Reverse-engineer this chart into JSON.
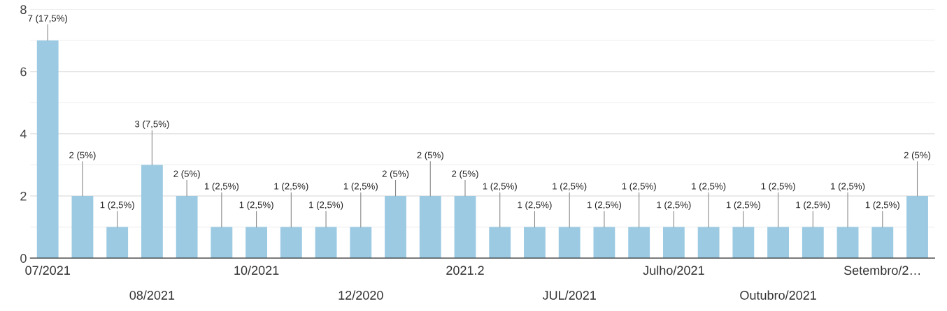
{
  "chart_data": {
    "type": "bar",
    "categories": [
      "07/2021",
      null,
      null,
      "08/2021",
      null,
      null,
      "10/2021",
      null,
      null,
      "12/2020",
      null,
      null,
      "2021.2",
      null,
      null,
      "JUL/2021",
      null,
      null,
      "Julho/2021",
      null,
      null,
      "Outubro/2021",
      null,
      null,
      "Setembro/2…",
      null
    ],
    "values": [
      7,
      2,
      1,
      3,
      2,
      1,
      1,
      1,
      1,
      1,
      2,
      2,
      2,
      1,
      1,
      1,
      1,
      1,
      1,
      1,
      1,
      1,
      1,
      1,
      1,
      2
    ],
    "value_labels": [
      "7 (17,5%)",
      "2 (5%)",
      "1 (2,5%)",
      "3 (7,5%)",
      "2 (5%)",
      "1 (2,5%)",
      "1 (2,5%)",
      "1 (2,5%)",
      "1 (2,5%)",
      "1 (2,5%)",
      "2 (5%)",
      "2 (5%)",
      "2 (5%)",
      "1 (2,5%)",
      "1 (2,5%)",
      "1 (2,5%)",
      "1 (2,5%)",
      "1 (2,5%)",
      "1 (2,5%)",
      "1 (2,5%)",
      "1 (2,5%)",
      "1 (2,5%)",
      "1 (2,5%)",
      "1 (2,5%)",
      "1 (2,5%)",
      "2 (5%)"
    ],
    "color": "#9ccae3",
    "ylim": [
      0,
      8
    ],
    "yticks": [
      0,
      2,
      4,
      6,
      8
    ],
    "grid": "y"
  }
}
